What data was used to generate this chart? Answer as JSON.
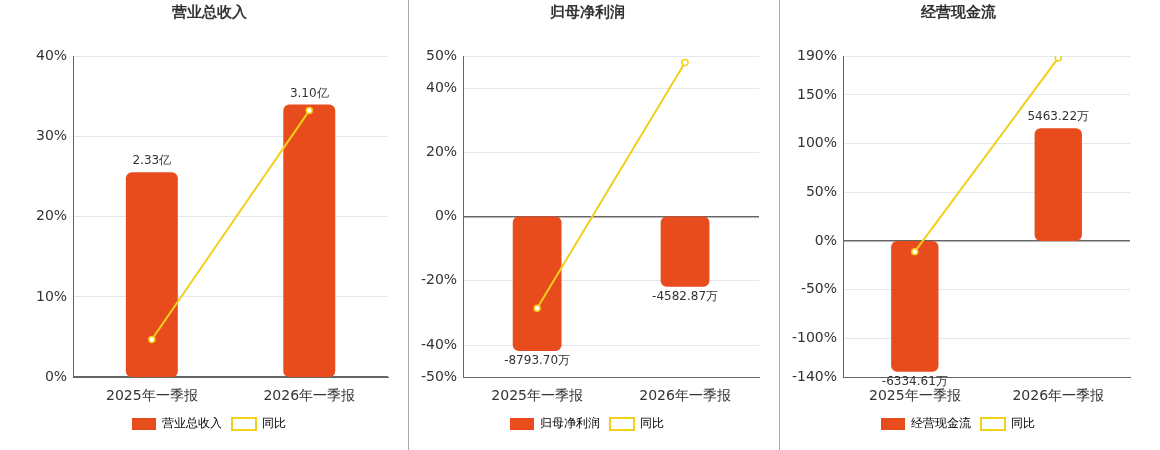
{
  "chart_data": [
    {
      "type": "bar",
      "title": "营业总收入",
      "categories": [
        "2025年一季报",
        "2026年一季报"
      ],
      "series": [
        {
          "name": "营业总收入",
          "axis": "y2",
          "color": "#e84c1c",
          "values": [
            2.33,
            3.1
          ],
          "value_labels": [
            "2.33亿",
            "3.10亿"
          ]
        },
        {
          "name": "同比",
          "type": "line",
          "color": "#f2cf1b",
          "values": [
            4.7,
            33.2
          ]
        }
      ],
      "ylim": [
        0,
        40
      ],
      "yticks": [
        {
          "value": 0,
          "label": "0%"
        },
        {
          "value": 10,
          "label": "10%"
        },
        {
          "value": 20,
          "label": "20%"
        },
        {
          "value": 30,
          "label": "30%"
        },
        {
          "value": 40,
          "label": "40%"
        }
      ],
      "y2lim": [
        0,
        3.65
      ],
      "grid": "y",
      "legend": "bottom",
      "marker": "circle"
    },
    {
      "type": "bar",
      "title": "归母净利润",
      "categories": [
        "2025年一季报",
        "2026年一季报"
      ],
      "series": [
        {
          "name": "归母净利润",
          "axis": "y2",
          "color": "#e84c1c",
          "values": [
            -8793.7,
            -4582.87
          ],
          "value_labels": [
            "-8793.70万",
            "-4582.87万"
          ]
        },
        {
          "name": "同比",
          "type": "line",
          "color": "#f2cf1b",
          "values": [
            -28.5,
            48
          ]
        }
      ],
      "ylim": [
        -50,
        50
      ],
      "yticks": [
        {
          "value": -50,
          "label": "-50%"
        },
        {
          "value": -40,
          "label": "-40%"
        },
        {
          "value": -20,
          "label": "-20%"
        },
        {
          "value": 0,
          "label": "0%"
        },
        {
          "value": 20,
          "label": "20%"
        },
        {
          "value": 40,
          "label": "40%"
        },
        {
          "value": 50,
          "label": "50%"
        }
      ],
      "y2lim": [
        -10500,
        10500
      ],
      "grid": "y",
      "legend": "bottom",
      "marker": "circle"
    },
    {
      "type": "bar",
      "title": "经营现金流",
      "categories": [
        "2025年一季报",
        "2026年一季报"
      ],
      "series": [
        {
          "name": "经营现金流",
          "axis": "y2",
          "color": "#e84c1c",
          "values": [
            -6334.61,
            5463.22
          ],
          "value_labels": [
            "-6334.61万",
            "5463.22万"
          ]
        },
        {
          "name": "同比",
          "type": "line",
          "color": "#f2cf1b",
          "values": [
            -11,
            188
          ]
        }
      ],
      "ylim": [
        -140,
        190
      ],
      "yticks": [
        {
          "value": -140,
          "label": "-140%"
        },
        {
          "value": -100,
          "label": "-100%"
        },
        {
          "value": -50,
          "label": "-50%"
        },
        {
          "value": 0,
          "label": "0%"
        },
        {
          "value": 50,
          "label": "50%"
        },
        {
          "value": 100,
          "label": "100%"
        },
        {
          "value": 150,
          "label": "150%"
        },
        {
          "value": 190,
          "label": "190%"
        }
      ],
      "y2lim": [
        -6600,
        8957
      ],
      "grid": "y",
      "legend": "bottom",
      "marker": "circle"
    }
  ]
}
